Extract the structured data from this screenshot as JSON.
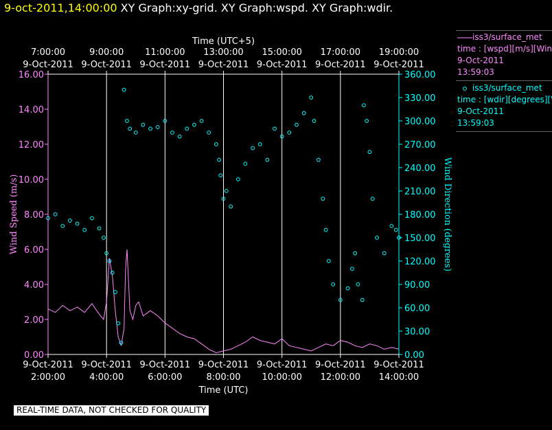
{
  "header": {
    "timestamp": "9-oct-2011,14:00:00",
    "graph_titles": "XY Graph:xy-grid.  XY Graph:wspd.  XY Graph:wdir."
  },
  "disclaimer": "REAL-TIME DATA, NOT CHECKED FOR QUALITY",
  "legend": {
    "wspd": {
      "line1": "iss3/surface_met",
      "line2": "time : [wspd][m/s][Wind",
      "line3": "9-Oct-2011",
      "line4": "13:59:03"
    },
    "wdir": {
      "line1": "iss3/surface_met",
      "line2": "time : [wdir][degrees][W",
      "line3": "9-Oct-2011",
      "line4": "13:59:03"
    }
  },
  "colors": {
    "wspd": "#ff88ff",
    "wdir": "#00ffff",
    "grid": "#ffffff",
    "axis_text": "#ffffff"
  },
  "chart_data": {
    "type": "line",
    "title": "XY Graph: wspd / wdir",
    "xlabel_bottom": "Time (UTC)",
    "xlabel_top": "Time (UTC+5)",
    "ylabel_left": "Wind Speed (m/s)",
    "ylabel_right": "Wind Direction (degrees)",
    "x_range_hours_utc": [
      2.0,
      14.0
    ],
    "ylim_left": [
      0,
      16
    ],
    "ylim_right": [
      0,
      360
    ],
    "left_ticks": [
      "0.00",
      "2.00",
      "4.00",
      "6.00",
      "8.00",
      "10.00",
      "12.00",
      "14.00",
      "16.00"
    ],
    "right_ticks": [
      "0.00",
      "30.00",
      "60.00",
      "90.00",
      "120.00",
      "150.00",
      "180.00",
      "210.00",
      "240.00",
      "270.00",
      "300.00",
      "330.00",
      "360.00"
    ],
    "bottom_ticks": [
      {
        "hour": 2,
        "date": "9-Oct-2011",
        "time": "2:00:00"
      },
      {
        "hour": 4,
        "date": "9-Oct-2011",
        "time": "4:00:00"
      },
      {
        "hour": 6,
        "date": "9-Oct-2011",
        "time": "6:00:00"
      },
      {
        "hour": 8,
        "date": "9-Oct-2011",
        "time": "8:00:00"
      },
      {
        "hour": 10,
        "date": "9-Oct-2011",
        "time": "10:00:00"
      },
      {
        "hour": 12,
        "date": "9-Oct-2011",
        "time": "12:00:00"
      },
      {
        "hour": 14,
        "date": "9-Oct-2011",
        "time": "14:00:00"
      }
    ],
    "top_ticks": [
      {
        "hour": 2,
        "time": "7:00:00",
        "date": "9-Oct-2011"
      },
      {
        "hour": 4,
        "time": "9:00:00",
        "date": "9-Oct-2011"
      },
      {
        "hour": 6,
        "time": "11:00:00",
        "date": "9-Oct-2011"
      },
      {
        "hour": 8,
        "time": "13:00:00",
        "date": "9-Oct-2011"
      },
      {
        "hour": 10,
        "time": "15:00:00",
        "date": "9-Oct-2011"
      },
      {
        "hour": 12,
        "time": "17:00:00",
        "date": "9-Oct-2011"
      },
      {
        "hour": 14,
        "time": "19:00:00",
        "date": "9-Oct-2011"
      }
    ],
    "grid_hours": [
      4,
      6,
      8,
      10,
      12
    ],
    "series": [
      {
        "name": "wspd",
        "axis": "left",
        "style": "line",
        "x": [
          2.0,
          2.25,
          2.5,
          2.75,
          3.0,
          3.25,
          3.5,
          3.75,
          3.9,
          4.0,
          4.1,
          4.2,
          4.3,
          4.4,
          4.5,
          4.6,
          4.65,
          4.7,
          4.8,
          4.9,
          5.0,
          5.1,
          5.25,
          5.5,
          5.75,
          6.0,
          6.25,
          6.5,
          6.75,
          7.0,
          7.25,
          7.5,
          7.75,
          8.0,
          8.25,
          8.5,
          8.75,
          9.0,
          9.25,
          9.5,
          9.75,
          10.0,
          10.25,
          10.5,
          10.75,
          11.0,
          11.25,
          11.5,
          11.75,
          12.0,
          12.25,
          12.5,
          12.75,
          13.0,
          13.25,
          13.5,
          13.75,
          14.0
        ],
        "values": [
          2.6,
          2.4,
          2.8,
          2.5,
          2.7,
          2.4,
          2.9,
          2.3,
          2.0,
          3.0,
          5.5,
          4.5,
          2.5,
          1.0,
          0.5,
          1.5,
          4.8,
          6.0,
          2.5,
          2.0,
          2.8,
          3.0,
          2.2,
          2.5,
          2.2,
          1.8,
          1.5,
          1.2,
          1.0,
          0.9,
          0.6,
          0.3,
          0.1,
          0.2,
          0.3,
          0.5,
          0.7,
          1.0,
          0.8,
          0.7,
          0.6,
          0.9,
          0.5,
          0.4,
          0.3,
          0.2,
          0.4,
          0.6,
          0.5,
          0.8,
          0.7,
          0.5,
          0.4,
          0.6,
          0.5,
          0.3,
          0.4,
          0.3
        ]
      },
      {
        "name": "wdir",
        "axis": "right",
        "style": "scatter",
        "x": [
          2.0,
          2.25,
          2.5,
          2.75,
          3.0,
          3.25,
          3.5,
          3.75,
          3.9,
          4.0,
          4.1,
          4.2,
          4.3,
          4.4,
          4.5,
          4.6,
          4.7,
          4.8,
          5.0,
          5.25,
          5.5,
          5.75,
          6.0,
          6.25,
          6.5,
          6.75,
          7.0,
          7.25,
          7.5,
          7.75,
          7.85,
          7.9,
          8.0,
          8.1,
          8.25,
          8.5,
          8.75,
          9.0,
          9.25,
          9.5,
          9.75,
          10.0,
          10.25,
          10.5,
          10.75,
          11.0,
          11.1,
          11.25,
          11.4,
          11.5,
          11.6,
          11.75,
          12.0,
          12.25,
          12.4,
          12.5,
          12.6,
          12.75,
          12.8,
          12.9,
          13.0,
          13.1,
          13.25,
          13.5,
          13.75,
          13.9,
          14.0
        ],
        "values": [
          175,
          180,
          165,
          172,
          168,
          160,
          175,
          162,
          150,
          130,
          120,
          105,
          80,
          40,
          15,
          340,
          300,
          290,
          285,
          295,
          290,
          292,
          300,
          285,
          280,
          290,
          295,
          300,
          285,
          270,
          250,
          230,
          200,
          210,
          190,
          225,
          245,
          265,
          270,
          250,
          290,
          280,
          285,
          295,
          310,
          330,
          300,
          250,
          200,
          160,
          120,
          90,
          70,
          85,
          110,
          130,
          90,
          70,
          320,
          300,
          260,
          200,
          150,
          130,
          165,
          160,
          150
        ]
      }
    ]
  }
}
